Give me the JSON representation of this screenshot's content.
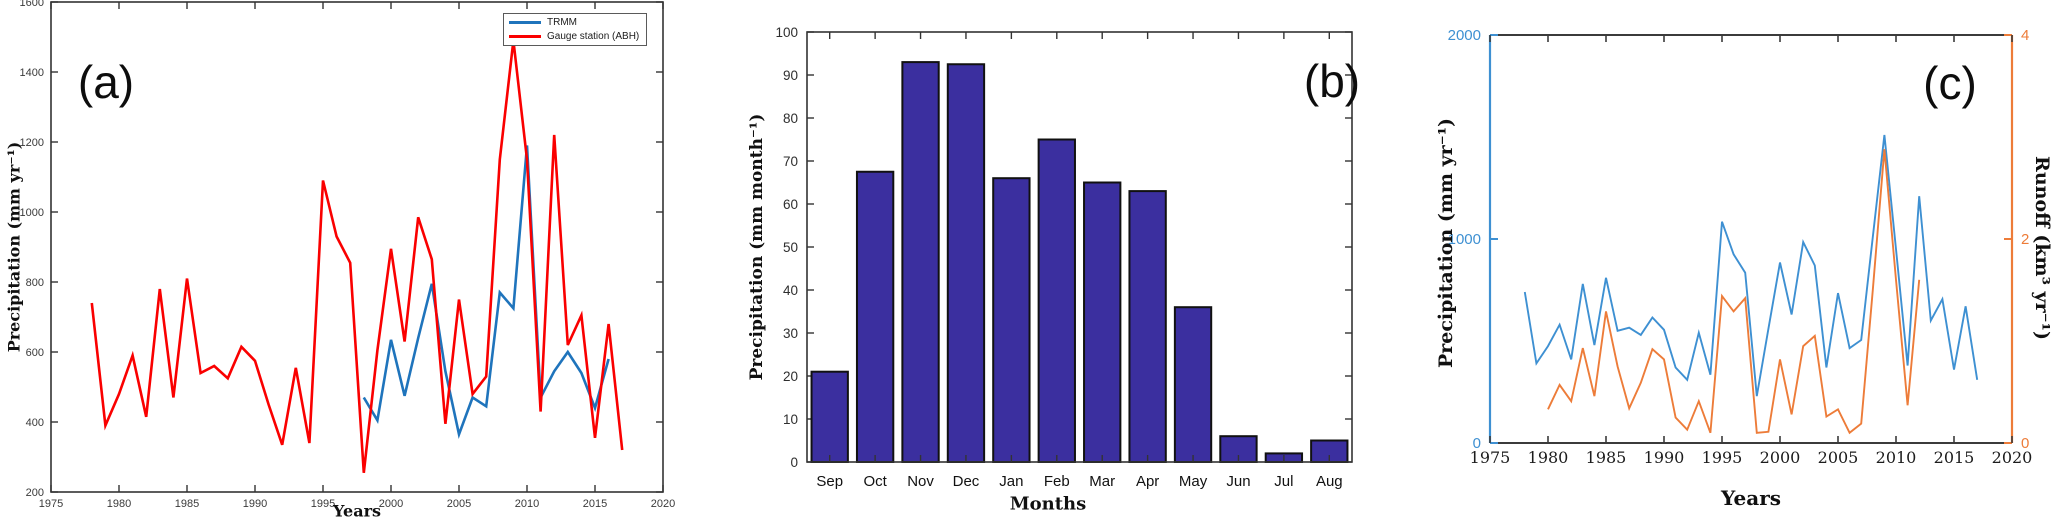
{
  "figure": {
    "background": "#ffffff"
  },
  "panels": {
    "a": {
      "label": "(a)",
      "xlabel": "Years",
      "ylabel": "Precipitation (mm yr⁻¹)",
      "legend": [
        {
          "name": "TRMM",
          "color": "#1F74BC"
        },
        {
          "name": "Gauge station (ABH)",
          "color": "#FA0000"
        }
      ]
    },
    "b": {
      "label": "(b)",
      "xlabel": "Months",
      "ylabel": "Precipitation (mm month⁻¹)"
    },
    "c": {
      "label": "(c)",
      "xlabel": "Years",
      "ylabel_left": "Precipitation (mm yr⁻¹)",
      "ylabel_right": "Runoff (km³ yr⁻¹)"
    }
  },
  "chart_data": [
    {
      "type": "line",
      "panel": "a",
      "title": "(a)",
      "xlabel": "Years",
      "ylabel": "Precipitation (mm yr⁻¹)",
      "xlim": [
        1975,
        2020
      ],
      "ylim": [
        200,
        1600
      ],
      "xtick_step": 5,
      "ytick_step": 200,
      "grid": false,
      "legend_position": "top-right-inside",
      "series": [
        {
          "name": "TRMM",
          "color": "#1F74BC",
          "x": [
            1998,
            1999,
            2000,
            2001,
            2002,
            2003,
            2004,
            2005,
            2006,
            2007,
            2008,
            2009,
            2010,
            2011,
            2012,
            2013,
            2014,
            2015,
            2016
          ],
          "y": [
            470,
            405,
            635,
            475,
            640,
            795,
            545,
            365,
            470,
            445,
            770,
            725,
            1190,
            470,
            545,
            600,
            540,
            440,
            580
          ]
        },
        {
          "name": "Gauge station (ABH)",
          "color": "#FA0000",
          "x": [
            1978,
            1979,
            1980,
            1981,
            1982,
            1983,
            1984,
            1985,
            1986,
            1987,
            1988,
            1989,
            1990,
            1991,
            1992,
            1993,
            1994,
            1995,
            1996,
            1997,
            1998,
            1999,
            2000,
            2001,
            2002,
            2003,
            2004,
            2005,
            2006,
            2007,
            2008,
            2009,
            2010,
            2011,
            2012,
            2013,
            2014,
            2015,
            2016,
            2017
          ],
          "y": [
            740,
            390,
            480,
            590,
            415,
            780,
            470,
            810,
            540,
            560,
            525,
            615,
            575,
            450,
            335,
            555,
            340,
            1090,
            930,
            855,
            255,
            605,
            895,
            630,
            985,
            865,
            395,
            750,
            480,
            530,
            1150,
            1490,
            1150,
            430,
            1220,
            620,
            705,
            355,
            680,
            320
          ]
        }
      ]
    },
    {
      "type": "bar",
      "panel": "b",
      "title": "(b)",
      "xlabel": "Months",
      "ylabel": "Precipitation (mm month⁻¹)",
      "categories": [
        "Sep",
        "Oct",
        "Nov",
        "Dec",
        "Jan",
        "Feb",
        "Mar",
        "Apr",
        "May",
        "Jun",
        "Jul",
        "Aug"
      ],
      "values": [
        21,
        67.5,
        93,
        92.5,
        66,
        75,
        65,
        63,
        36,
        6,
        2,
        5
      ],
      "ylim": [
        0,
        100
      ],
      "ytick_step": 10,
      "grid": false,
      "bar_color": "#3B2F9F",
      "bar_edge": "#111111"
    },
    {
      "type": "line-dual",
      "panel": "c",
      "title": "(c)",
      "xlabel": "Years",
      "xlim": [
        1975,
        2020
      ],
      "xtick_step": 5,
      "grid": false,
      "left_axis": {
        "label": "Precipitation (mm yr⁻¹)",
        "color": "#3E90D2",
        "lim": [
          0,
          2000
        ],
        "ticks": [
          0,
          1000,
          2000
        ]
      },
      "right_axis": {
        "label": "Runoff (km³ yr⁻¹)",
        "color": "#ED7C39",
        "lim": [
          0,
          4
        ],
        "ticks": [
          0,
          2,
          4
        ]
      },
      "frame_color": "#3b3b3b",
      "series": [
        {
          "name": "Precipitation",
          "axis": "left",
          "color": "#3E90D2",
          "x": [
            1978,
            1979,
            1980,
            1981,
            1982,
            1983,
            1984,
            1985,
            1986,
            1987,
            1988,
            1989,
            1990,
            1991,
            1992,
            1993,
            1994,
            1995,
            1996,
            1997,
            1998,
            1999,
            2000,
            2001,
            2002,
            2003,
            2004,
            2005,
            2006,
            2007,
            2008,
            2009,
            2010,
            2011,
            2012,
            2013,
            2014,
            2015,
            2016,
            2017
          ],
          "y": [
            740,
            390,
            475,
            580,
            410,
            780,
            480,
            810,
            550,
            565,
            530,
            615,
            555,
            370,
            310,
            540,
            335,
            1085,
            925,
            835,
            230,
            560,
            885,
            630,
            985,
            870,
            370,
            735,
            465,
            505,
            1010,
            1510,
            950,
            380,
            1210,
            600,
            705,
            360,
            670,
            310
          ]
        },
        {
          "name": "Runoff",
          "axis": "right",
          "color": "#ED7C39",
          "x": [
            1980,
            1981,
            1982,
            1983,
            1984,
            1985,
            1986,
            1987,
            1988,
            1989,
            1990,
            1991,
            1992,
            1993,
            1994,
            1995,
            1996,
            1997,
            1998,
            1999,
            2000,
            2001,
            2002,
            2003,
            2004,
            2005,
            2006,
            2007,
            2008,
            2009,
            2010,
            2011,
            2012
          ],
          "y": [
            0.33,
            0.57,
            0.41,
            0.93,
            0.46,
            1.29,
            0.75,
            0.34,
            0.59,
            0.92,
            0.82,
            0.25,
            0.13,
            0.41,
            0.1,
            1.44,
            1.29,
            1.42,
            0.1,
            0.11,
            0.82,
            0.28,
            0.95,
            1.05,
            0.26,
            0.33,
            0.1,
            0.19,
            1.5,
            2.88,
            1.6,
            0.37,
            1.6
          ]
        }
      ]
    }
  ]
}
